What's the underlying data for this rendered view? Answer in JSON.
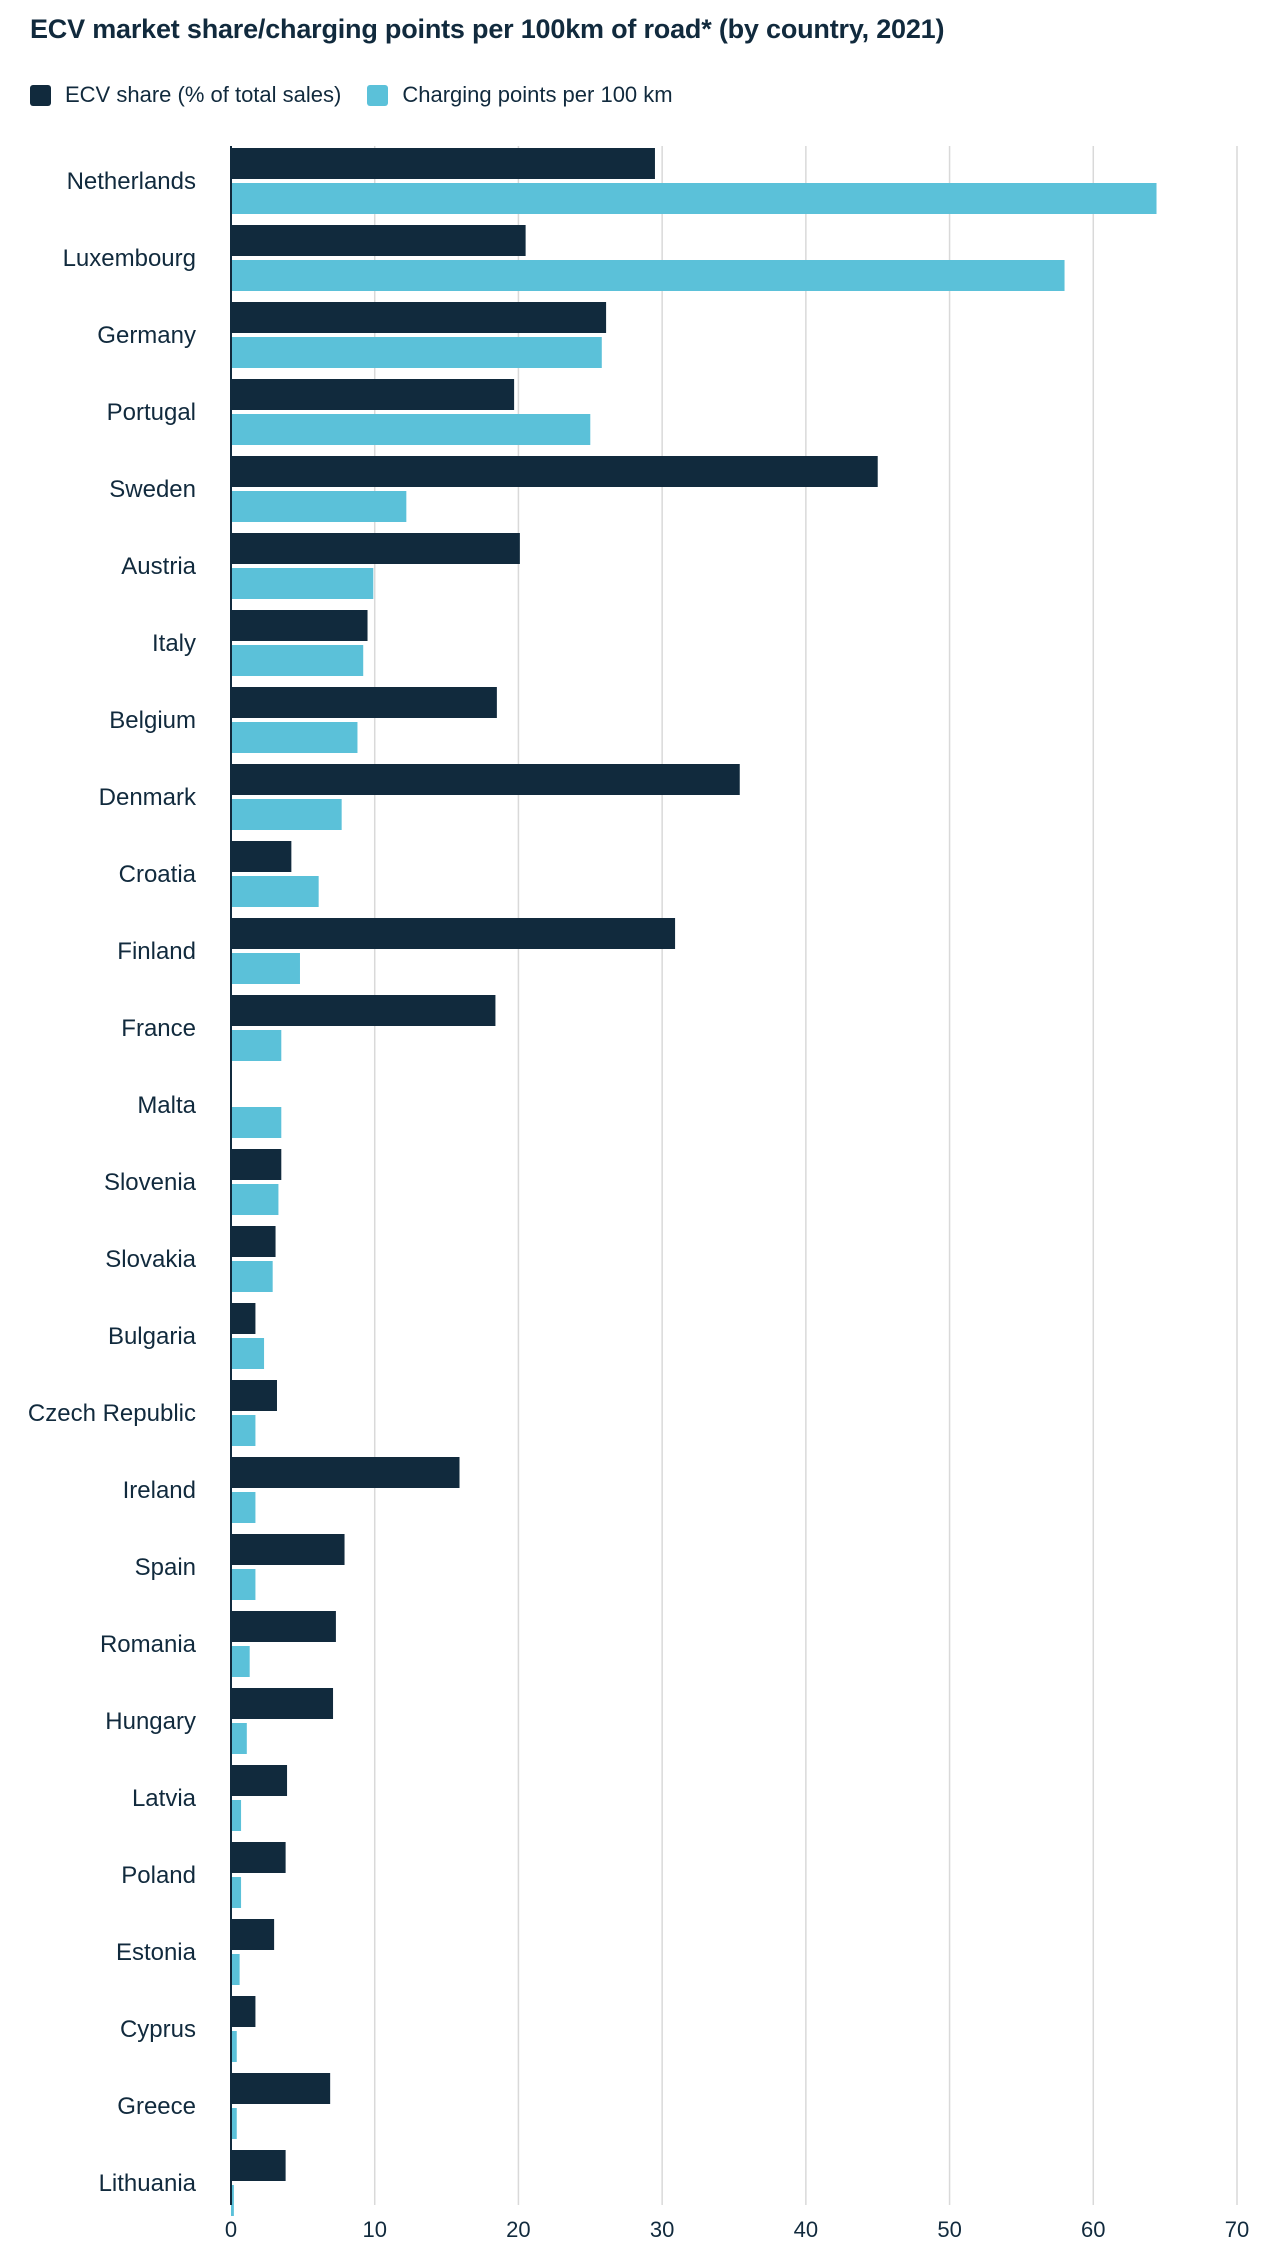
{
  "colors": {
    "ecv": "#112a3d",
    "charging": "#5bc1d9",
    "grid": "#d9d9d9",
    "axis": "#112a3d"
  },
  "chart_data": {
    "type": "bar",
    "orientation": "horizontal",
    "title": "ECV market share/charging points per 100km of road* (by country, 2021)",
    "legend_position": "top-left",
    "grid": true,
    "xlim": [
      0,
      70
    ],
    "xticks": [
      0,
      10,
      20,
      30,
      40,
      50,
      60,
      70
    ],
    "categories": [
      "Netherlands",
      "Luxembourg",
      "Germany",
      "Portugal",
      "Sweden",
      "Austria",
      "Italy",
      "Belgium",
      "Denmark",
      "Croatia",
      "Finland",
      "France",
      "Malta",
      "Slovenia",
      "Slovakia",
      "Bulgaria",
      "Czech Republic",
      "Ireland",
      "Spain",
      "Romania",
      "Hungary",
      "Latvia",
      "Poland",
      "Estonia",
      "Cyprus",
      "Greece",
      "Lithuania"
    ],
    "series": [
      {
        "name": "ECV share (% of total sales)",
        "values": [
          29.5,
          20.5,
          26.1,
          19.7,
          45.0,
          20.1,
          9.5,
          18.5,
          35.4,
          4.2,
          30.9,
          18.4,
          0,
          3.5,
          3.1,
          1.7,
          3.2,
          15.9,
          7.9,
          7.3,
          7.1,
          3.9,
          3.8,
          3.0,
          1.7,
          6.9,
          3.8
        ]
      },
      {
        "name": "Charging points per 100 km",
        "values": [
          64.4,
          58.0,
          25.8,
          25.0,
          12.2,
          9.9,
          9.2,
          8.8,
          7.7,
          6.1,
          4.8,
          3.5,
          3.5,
          3.3,
          2.9,
          2.3,
          1.7,
          1.7,
          1.7,
          1.3,
          1.1,
          0.7,
          0.7,
          0.6,
          0.4,
          0.4,
          0.2
        ]
      }
    ]
  }
}
